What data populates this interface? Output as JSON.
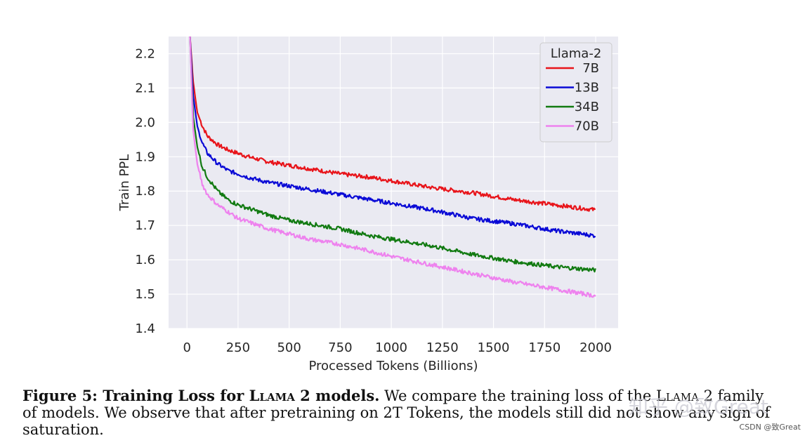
{
  "chart_data": {
    "type": "line",
    "xlabel": "Processed Tokens (Billions)",
    "ylabel": "Train PPL",
    "xlim": [
      -90,
      2110
    ],
    "ylim": [
      1.4,
      2.25
    ],
    "xticks": [
      0,
      250,
      500,
      750,
      1000,
      1250,
      1500,
      1750,
      2000
    ],
    "yticks": [
      1.4,
      1.5,
      1.6,
      1.7,
      1.8,
      1.9,
      2.0,
      2.1,
      2.2
    ],
    "grid": true,
    "background": "#eaeaf2",
    "legend": {
      "title": "Llama-2",
      "position": "top-right"
    },
    "series": [
      {
        "name": "7B",
        "color": "#e8141a",
        "x": [
          15,
          30,
          50,
          75,
          100,
          150,
          200,
          250,
          300,
          400,
          500,
          600,
          750,
          900,
          1000,
          1200,
          1400,
          1600,
          1800,
          2000
        ],
        "y": [
          2.25,
          2.12,
          2.03,
          1.99,
          1.96,
          1.935,
          1.92,
          1.91,
          1.9,
          1.885,
          1.875,
          1.865,
          1.85,
          1.84,
          1.83,
          1.81,
          1.795,
          1.775,
          1.76,
          1.745
        ]
      },
      {
        "name": "13B",
        "color": "#0a0ad6",
        "x": [
          15,
          30,
          50,
          75,
          100,
          150,
          200,
          250,
          300,
          400,
          500,
          600,
          750,
          900,
          1000,
          1200,
          1400,
          1600,
          1800,
          2000
        ],
        "y": [
          2.25,
          2.08,
          1.99,
          1.94,
          1.91,
          1.88,
          1.86,
          1.85,
          1.84,
          1.825,
          1.815,
          1.805,
          1.79,
          1.775,
          1.765,
          1.745,
          1.72,
          1.705,
          1.685,
          1.67
        ]
      },
      {
        "name": "34B",
        "color": "#117a11",
        "x": [
          15,
          30,
          50,
          75,
          100,
          150,
          200,
          250,
          300,
          400,
          500,
          600,
          750,
          900,
          1000,
          1200,
          1400,
          1600,
          1800,
          2000
        ],
        "y": [
          2.25,
          2.02,
          1.93,
          1.87,
          1.84,
          1.8,
          1.775,
          1.76,
          1.75,
          1.73,
          1.715,
          1.705,
          1.69,
          1.67,
          1.66,
          1.64,
          1.615,
          1.595,
          1.58,
          1.57
        ]
      },
      {
        "name": "70B",
        "color": "#ee82ee",
        "x": [
          15,
          30,
          50,
          75,
          100,
          150,
          200,
          250,
          300,
          400,
          500,
          600,
          750,
          900,
          1000,
          1200,
          1400,
          1600,
          1800,
          2000
        ],
        "y": [
          2.25,
          1.98,
          1.88,
          1.82,
          1.79,
          1.76,
          1.74,
          1.72,
          1.71,
          1.69,
          1.675,
          1.66,
          1.645,
          1.625,
          1.61,
          1.585,
          1.56,
          1.535,
          1.515,
          1.495
        ]
      }
    ]
  },
  "caption": {
    "label": "Figure 5: Training Loss for ",
    "label_sc": "Llama 2",
    "label_end": " models.",
    "text1": " We compare the training loss of the ",
    "text1_sc": "Llama 2",
    "text2": " family of models. We observe that after pretraining on 2T Tokens, the models still did not show any sign of saturation."
  },
  "watermark": "知乎 @致Great",
  "credit": "CSDN @致Great"
}
